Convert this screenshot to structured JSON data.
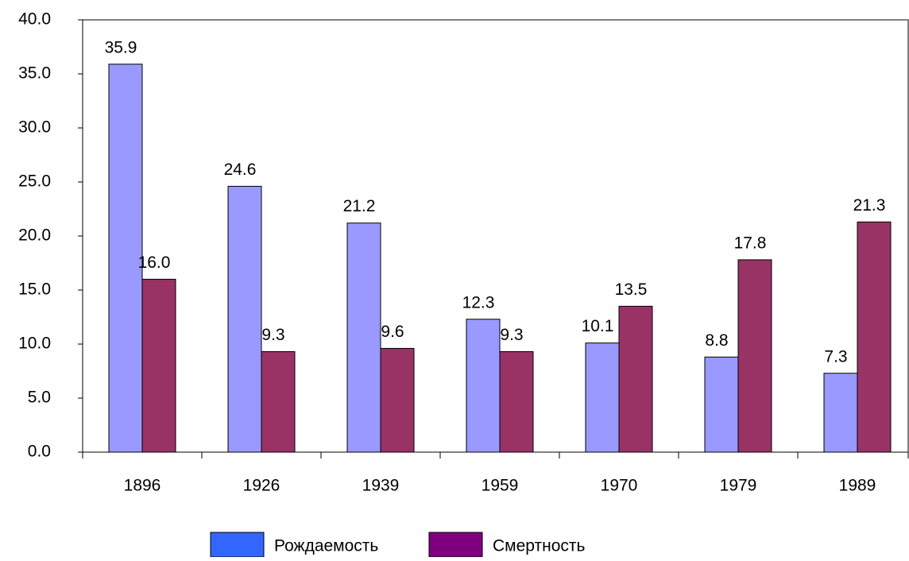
{
  "chart_data": {
    "type": "bar",
    "categories": [
      "1896",
      "1926",
      "1939",
      "1959",
      "1970",
      "1979",
      "1989"
    ],
    "series": [
      {
        "name": "Рождаемость",
        "color": "#9999ff",
        "legend_color": "#3366ff",
        "values": [
          35.9,
          24.6,
          21.2,
          12.3,
          10.1,
          8.8,
          7.3
        ],
        "value_labels": [
          "35.9",
          "24.6",
          "21.2",
          "12.3",
          "10.1",
          "8.8",
          "7.3"
        ]
      },
      {
        "name": "Смертность",
        "color": "#993366",
        "legend_color": "#800080",
        "values": [
          16.0,
          9.3,
          9.6,
          9.3,
          13.5,
          17.8,
          21.3
        ],
        "value_labels": [
          "16.0",
          "9.3",
          "9.6",
          "9.3",
          "13.5",
          "17.8",
          "21.3"
        ]
      }
    ],
    "ylim": [
      0,
      40
    ],
    "yticks": [
      {
        "value": 0,
        "label": "0.0"
      },
      {
        "value": 5,
        "label": "5.0"
      },
      {
        "value": 10,
        "label": "10.0"
      },
      {
        "value": 15,
        "label": "15.0"
      },
      {
        "value": 20,
        "label": "20.0"
      },
      {
        "value": 25,
        "label": "25.0"
      },
      {
        "value": 30,
        "label": "30.0"
      },
      {
        "value": 35,
        "label": "35.0"
      },
      {
        "value": 40,
        "label": "40.0"
      }
    ],
    "grid": false,
    "legend": "bottom"
  }
}
